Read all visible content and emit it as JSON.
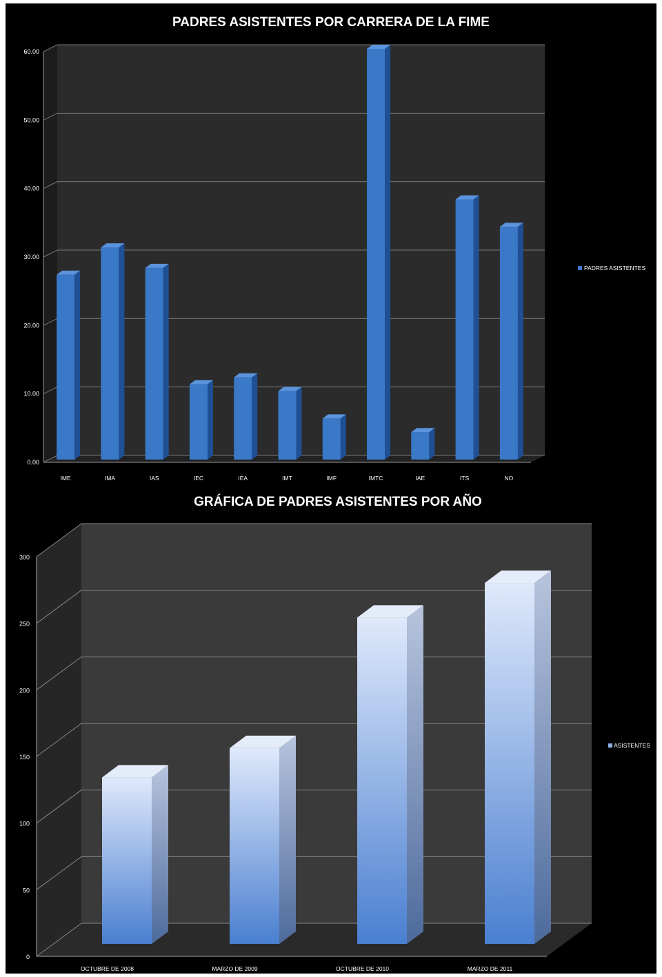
{
  "chart_data": [
    {
      "type": "bar",
      "title": "PADRES ASISTENTES  POR CARRERA DE LA FIME",
      "categories": [
        "IME",
        "IMA",
        "IAS",
        "IEC",
        "IEA",
        "IMT",
        "IMF",
        "IMTC",
        "IAE",
        "ITS",
        "NO"
      ],
      "series": [
        {
          "name": "PADRES ASISTENTES",
          "values": [
            27,
            31,
            28,
            11,
            12,
            10,
            6,
            60,
            4,
            38,
            34
          ]
        }
      ],
      "ylim": [
        0,
        60
      ],
      "yticks": [
        "0.00",
        "10.00",
        "20.00",
        "30.00",
        "40.00",
        "50.00",
        "60.00"
      ],
      "grid": true,
      "legend": "right",
      "colors": {
        "bar": "#3a78c8",
        "background": "#000000",
        "wall": "#2b2b2b"
      }
    },
    {
      "type": "bar",
      "title": "GRÁFICA DE PADRES ASISTENTES POR AÑO",
      "categories": [
        "OCTUBRE DE 2008",
        "MARZO DE 2009",
        "OCTUBRE DE 2010",
        "MARZO DE 2011"
      ],
      "series": [
        {
          "name": "ASISTENTES",
          "values": [
            125,
            147,
            245,
            271
          ]
        }
      ],
      "ylim": [
        0,
        300
      ],
      "yticks": [
        "0",
        "50",
        "100",
        "150",
        "200",
        "250",
        "300"
      ],
      "grid": true,
      "legend": "right",
      "colors": {
        "bar_top": "#dfe9fb",
        "bar_bottom": "#4a7fd0",
        "background": "#000000",
        "wall": "#3a3a3a"
      }
    }
  ]
}
